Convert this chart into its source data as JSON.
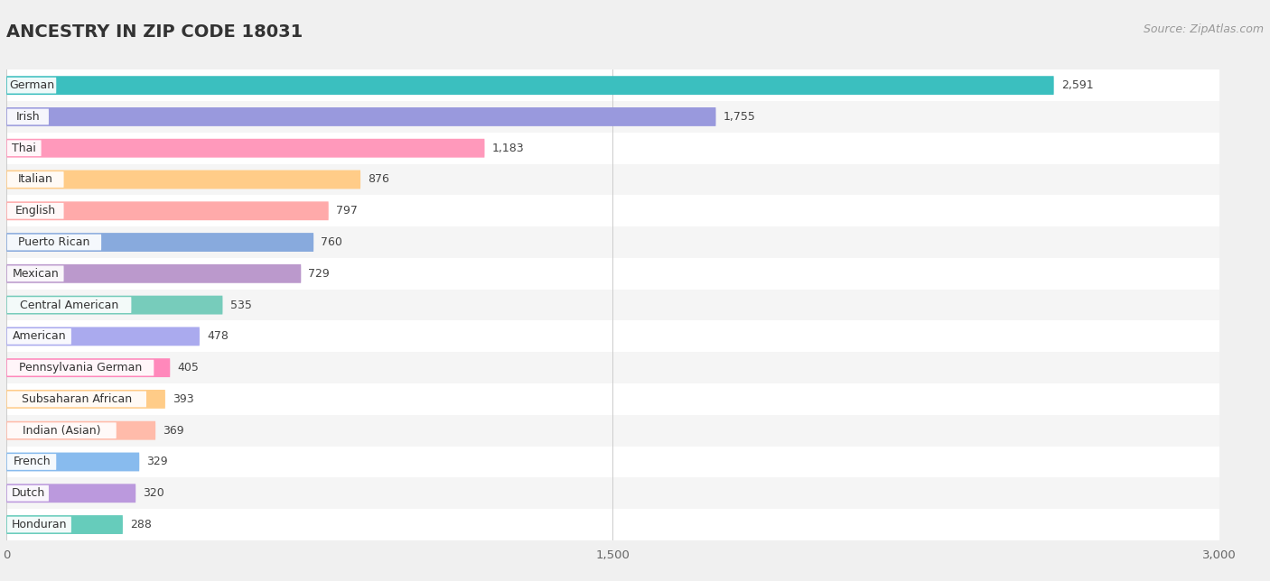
{
  "title": "ANCESTRY IN ZIP CODE 18031",
  "source": "Source: ZipAtlas.com",
  "categories": [
    "German",
    "Irish",
    "Thai",
    "Italian",
    "English",
    "Puerto Rican",
    "Mexican",
    "Central American",
    "American",
    "Pennsylvania German",
    "Subsaharan African",
    "Indian (Asian)",
    "French",
    "Dutch",
    "Honduran"
  ],
  "values": [
    2591,
    1755,
    1183,
    876,
    797,
    760,
    729,
    535,
    478,
    405,
    393,
    369,
    329,
    320,
    288
  ],
  "bar_colors": [
    "#3bbfbf",
    "#9999dd",
    "#ff99bb",
    "#ffcc88",
    "#ffaaaa",
    "#88aadd",
    "#bb99cc",
    "#77ccbb",
    "#aaaaee",
    "#ff88bb",
    "#ffcc88",
    "#ffbbaa",
    "#88bbee",
    "#bb99dd",
    "#66ccbb"
  ],
  "row_colors": [
    "#ffffff",
    "#f5f5f5"
  ],
  "xlim": [
    0,
    3000
  ],
  "xticks": [
    0,
    1500,
    3000
  ],
  "xtick_labels": [
    "0",
    "1,500",
    "3,000"
  ],
  "background_color": "#f0f0f0",
  "title_fontsize": 14,
  "source_fontsize": 9,
  "label_fontsize": 9,
  "value_fontsize": 9
}
